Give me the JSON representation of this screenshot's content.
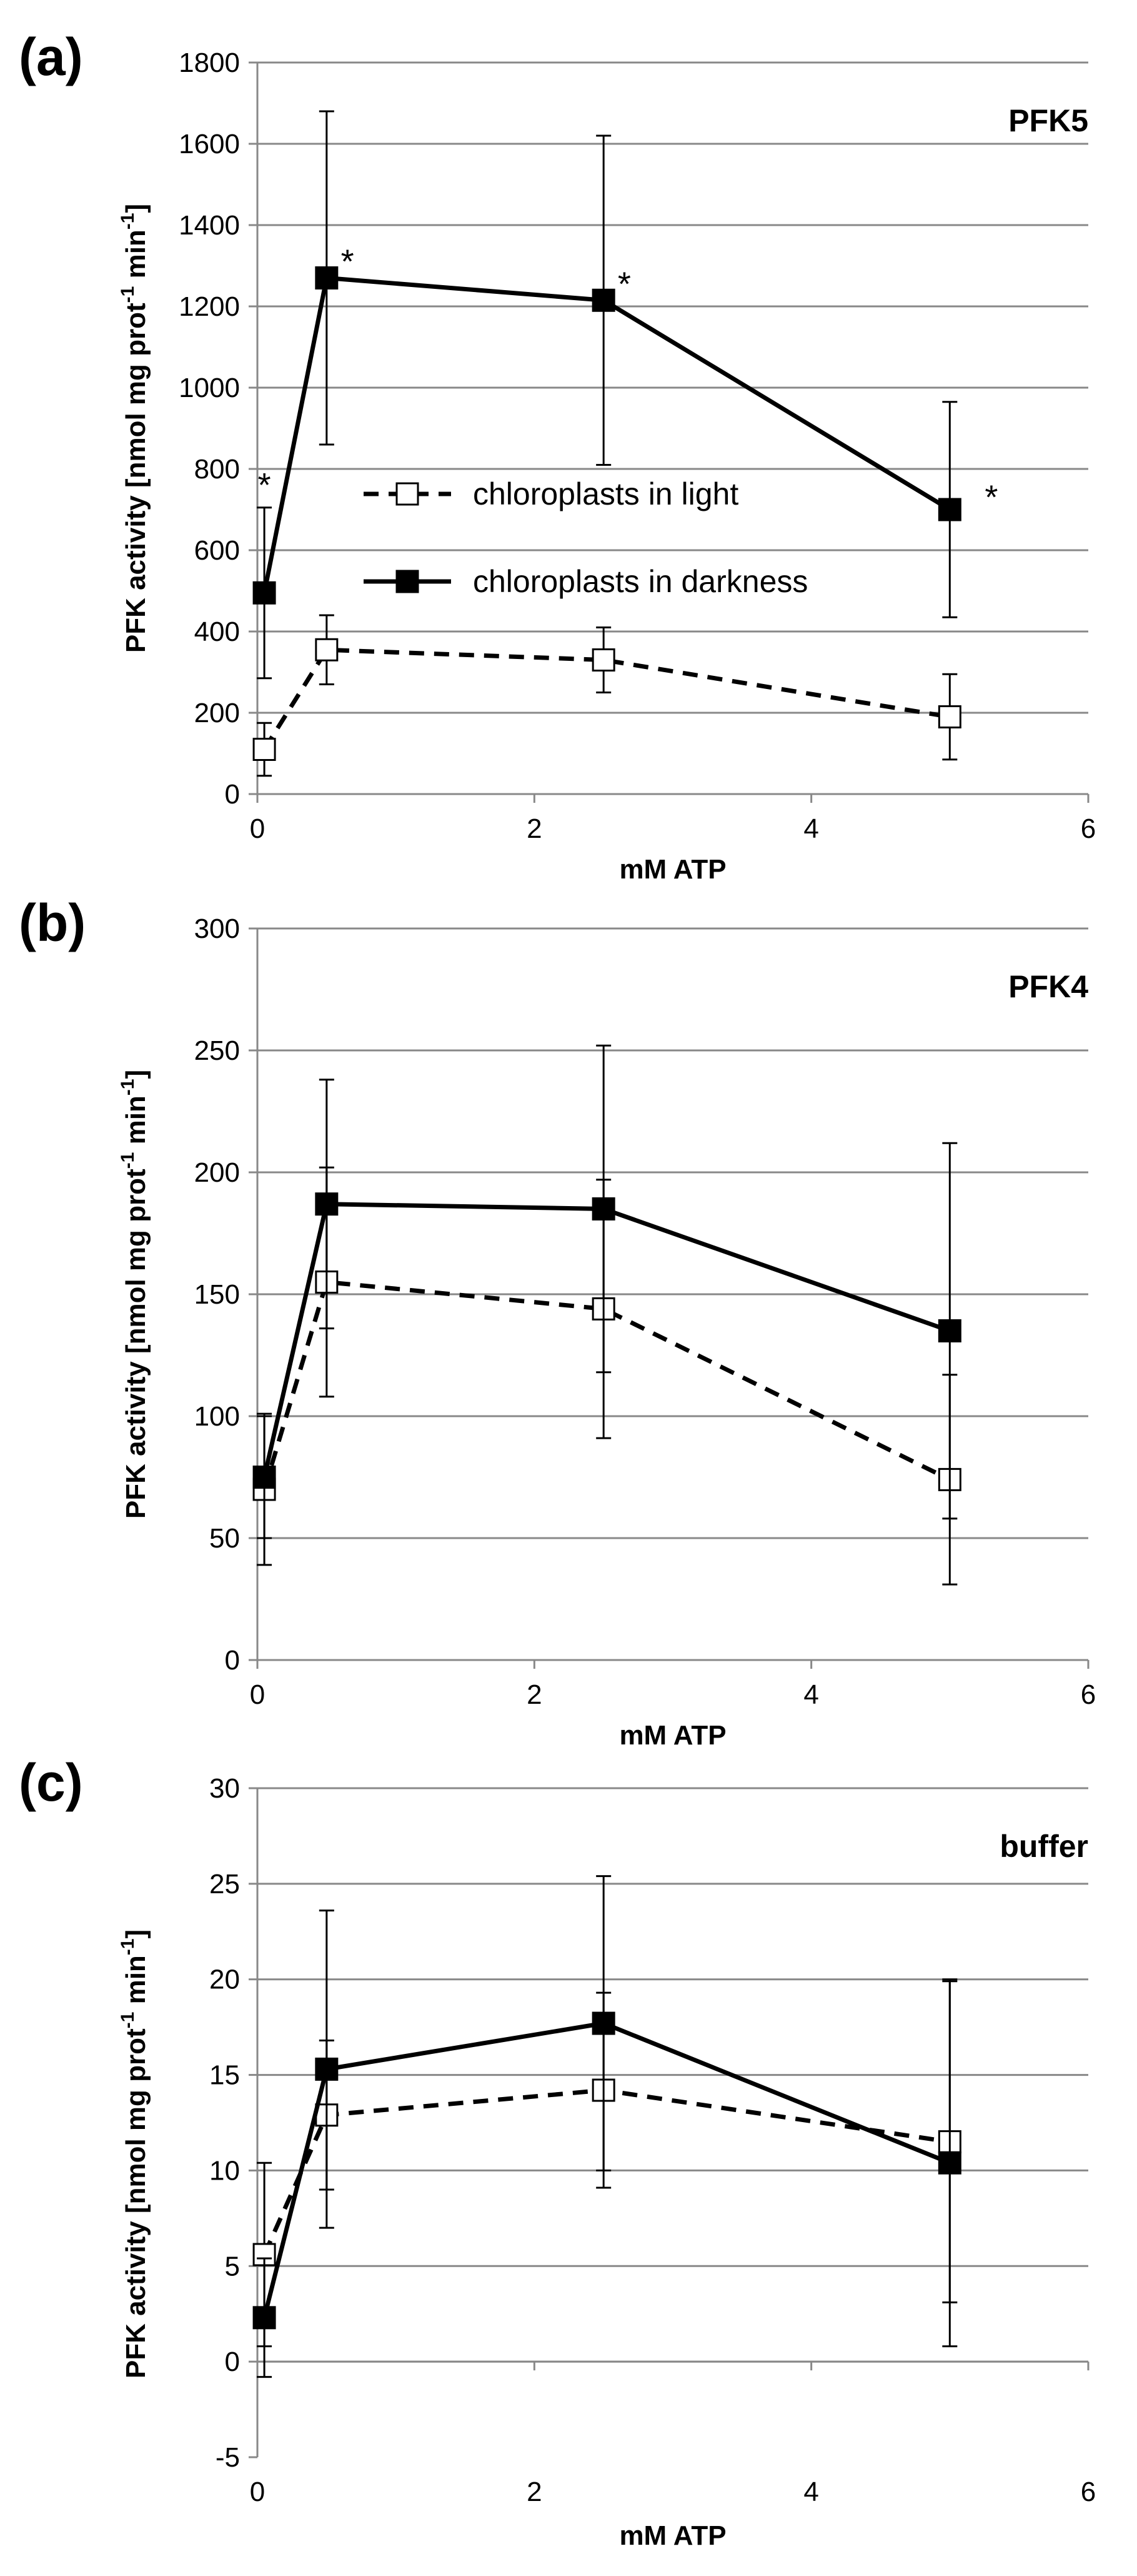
{
  "figure": {
    "background": "#ffffff",
    "grid_color": "#888888",
    "line_color": "#000000"
  },
  "chart_data": [
    {
      "type": "line",
      "panel_label": "(a)",
      "title": "PFK5",
      "xlabel": "mM ATP",
      "ylabel": "PFK activity [nmol mg prot-1 min-1]",
      "ylabel_parts": {
        "before1": "PFK activity [nmol mg prot",
        "sup1": "-1",
        "middle": " min",
        "sup2": "-1",
        "after": "]"
      },
      "xlim": [
        0,
        6
      ],
      "ylim": [
        0,
        1800
      ],
      "xticks": [
        0,
        2,
        4,
        6
      ],
      "yticks": [
        0,
        200,
        400,
        600,
        800,
        1000,
        1200,
        1400,
        1600,
        1800
      ],
      "grid": true,
      "legend": {
        "placement": "center-left",
        "entries": [
          "chloroplasts in light",
          "chloroplasts in darkness"
        ]
      },
      "x": [
        0.05,
        0.5,
        2.5,
        5
      ],
      "series": [
        {
          "name": "chloroplasts in light",
          "style": "dashed",
          "marker": "open-square",
          "values": [
            110,
            355,
            330,
            190
          ],
          "errors": [
            65,
            85,
            80,
            105
          ]
        },
        {
          "name": "chloroplasts in darkness",
          "style": "solid",
          "marker": "filled-square",
          "values": [
            495,
            1270,
            1215,
            700
          ],
          "errors": [
            210,
            410,
            405,
            265
          ]
        }
      ],
      "annotations": [
        {
          "text": "*",
          "x": 0.05,
          "y": 760
        },
        {
          "text": "*",
          "x": 0.65,
          "y": 1310
        },
        {
          "text": "*",
          "x": 2.65,
          "y": 1255
        },
        {
          "text": "*",
          "x": 5.3,
          "y": 730
        }
      ]
    },
    {
      "type": "line",
      "panel_label": "(b)",
      "title": "PFK4",
      "xlabel": "mM ATP",
      "ylabel": "PFK activity [nmol mg prot-1 min-1]",
      "ylabel_parts": {
        "before1": "PFK activity [nmol mg prot",
        "sup1": "-1",
        "middle": " min",
        "sup2": "-1",
        "after": "]"
      },
      "xlim": [
        0,
        6
      ],
      "ylim": [
        0,
        300
      ],
      "xticks": [
        0,
        2,
        4,
        6
      ],
      "yticks": [
        0,
        50,
        100,
        150,
        200,
        250,
        300
      ],
      "grid": true,
      "x": [
        0.05,
        0.5,
        2.5,
        5
      ],
      "series": [
        {
          "name": "chloroplasts in light",
          "style": "dashed",
          "marker": "open-square",
          "values": [
            70,
            155,
            144,
            74
          ],
          "errors": [
            31,
            47,
            53,
            43
          ]
        },
        {
          "name": "chloroplasts in darkness",
          "style": "solid",
          "marker": "filled-square",
          "values": [
            75,
            187,
            185,
            135
          ],
          "errors": [
            25,
            51,
            67,
            77
          ]
        }
      ],
      "annotations": []
    },
    {
      "type": "line",
      "panel_label": "(c)",
      "title": "buffer",
      "xlabel": "mM ATP",
      "ylabel": "PFK activity [nmol mg prot-1 min-1]",
      "ylabel_parts": {
        "before1": "PFK activity [nmol mg prot",
        "sup1": "-1",
        "middle": " min",
        "sup2": "-1",
        "after": "]"
      },
      "xlim": [
        0,
        6
      ],
      "ylim": [
        -5,
        30
      ],
      "xticks": [
        0,
        2,
        4,
        6
      ],
      "yticks": [
        -5,
        0,
        5,
        10,
        15,
        20,
        25,
        30
      ],
      "grid": true,
      "x": [
        0.05,
        0.5,
        2.5,
        5
      ],
      "series": [
        {
          "name": "chloroplasts in light",
          "style": "dashed",
          "marker": "open-square",
          "values": [
            5.6,
            12.9,
            14.2,
            11.5
          ],
          "errors": [
            4.8,
            3.9,
            5.1,
            8.4
          ]
        },
        {
          "name": "chloroplasts in darkness",
          "style": "solid",
          "marker": "filled-square",
          "values": [
            2.3,
            15.3,
            17.7,
            10.4
          ],
          "errors": [
            3.1,
            8.3,
            7.7,
            9.6
          ]
        }
      ],
      "annotations": []
    }
  ]
}
